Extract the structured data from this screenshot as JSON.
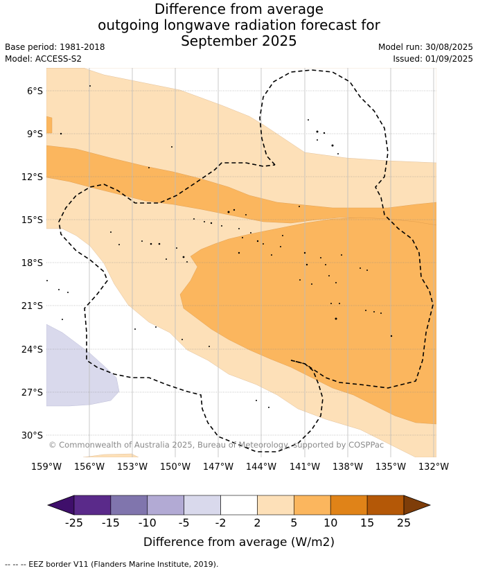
{
  "title": {
    "line1": "Difference from average",
    "line2": "outgoing longwave radiation forecast for",
    "line3": "September 2025"
  },
  "meta": {
    "base_period": "Base period: 1981-2018",
    "model": "Model: ACCESS-S2",
    "model_run": "Model run: 30/08/2025",
    "issued": "Issued: 01/09/2025"
  },
  "map": {
    "lat_labels": [
      "6°S",
      "9°S",
      "12°S",
      "15°S",
      "18°S",
      "21°S",
      "24°S",
      "27°S",
      "30°S"
    ],
    "lon_labels": [
      "159°W",
      "156°W",
      "153°W",
      "150°W",
      "147°W",
      "144°W",
      "141°W",
      "138°W",
      "135°W",
      "132°W"
    ],
    "copyright": "© Commonwealth of Australia 2025, Bureau of Meteorology, supported by COSPPac",
    "grid": true,
    "boundary_style": "dashed"
  },
  "legend": {
    "title": "Difference from average (W/m2)",
    "ticks": [
      "-25",
      "-15",
      "-10",
      "-5",
      "-2",
      "2",
      "5",
      "10",
      "15",
      "25"
    ],
    "colors": [
      "#3f0f6b",
      "#5a2a8a",
      "#8075ad",
      "#b2aad4",
      "#d9d9ec",
      "#ffffff",
      "#fde0b8",
      "#fbb65e",
      "#e08318",
      "#b45807",
      "#7e3d09"
    ]
  },
  "footer": "--  --  -- EEZ border V11 (Flanders Marine Institute, 2019)."
}
